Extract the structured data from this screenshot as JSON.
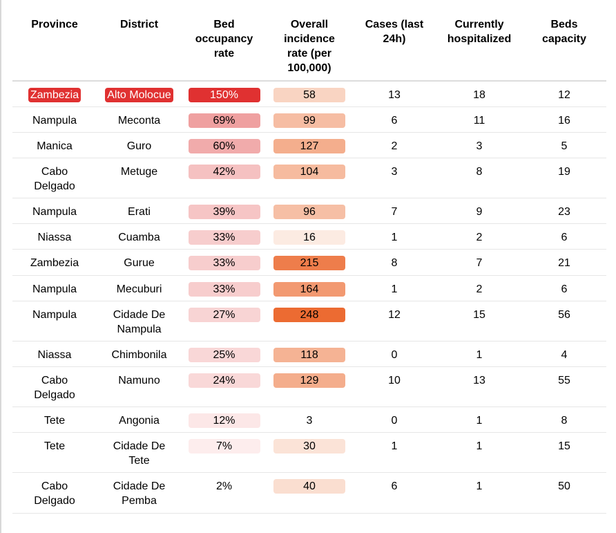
{
  "chart_data": {
    "type": "table",
    "columns": [
      "Province",
      "District",
      "Bed occupancy rate",
      "Overall incidence rate (per 100,000)",
      "Cases (last 24h)",
      "Currently hospitalized",
      "Beds capacity"
    ],
    "rows": [
      {
        "province": "Zambezia",
        "district": "Alto Molocue",
        "occupancy": "150%",
        "occupancy_value": 150,
        "incidence": "58",
        "incidence_value": 58,
        "cases": "13",
        "hospitalized": "18",
        "beds": "12"
      },
      {
        "province": "Nampula",
        "district": "Meconta",
        "occupancy": "69%",
        "occupancy_value": 69,
        "incidence": "99",
        "incidence_value": 99,
        "cases": "6",
        "hospitalized": "11",
        "beds": "16"
      },
      {
        "province": "Manica",
        "district": "Guro",
        "occupancy": "60%",
        "occupancy_value": 60,
        "incidence": "127",
        "incidence_value": 127,
        "cases": "2",
        "hospitalized": "3",
        "beds": "5"
      },
      {
        "province": "Cabo Delgado",
        "district": "Metuge",
        "occupancy": "42%",
        "occupancy_value": 42,
        "incidence": "104",
        "incidence_value": 104,
        "cases": "3",
        "hospitalized": "8",
        "beds": "19"
      },
      {
        "province": "Nampula",
        "district": "Erati",
        "occupancy": "39%",
        "occupancy_value": 39,
        "incidence": "96",
        "incidence_value": 96,
        "cases": "7",
        "hospitalized": "9",
        "beds": "23"
      },
      {
        "province": "Niassa",
        "district": "Cuamba",
        "occupancy": "33%",
        "occupancy_value": 33,
        "incidence": "16",
        "incidence_value": 16,
        "cases": "1",
        "hospitalized": "2",
        "beds": "6"
      },
      {
        "province": "Zambezia",
        "district": "Gurue",
        "occupancy": "33%",
        "occupancy_value": 33,
        "incidence": "215",
        "incidence_value": 215,
        "cases": "8",
        "hospitalized": "7",
        "beds": "21"
      },
      {
        "province": "Nampula",
        "district": "Mecuburi",
        "occupancy": "33%",
        "occupancy_value": 33,
        "incidence": "164",
        "incidence_value": 164,
        "cases": "1",
        "hospitalized": "2",
        "beds": "6"
      },
      {
        "province": "Nampula",
        "district": "Cidade De Nampula",
        "occupancy": "27%",
        "occupancy_value": 27,
        "incidence": "248",
        "incidence_value": 248,
        "cases": "12",
        "hospitalized": "15",
        "beds": "56"
      },
      {
        "province": "Niassa",
        "district": "Chimbonila",
        "occupancy": "25%",
        "occupancy_value": 25,
        "incidence": "118",
        "incidence_value": 118,
        "cases": "0",
        "hospitalized": "1",
        "beds": "4"
      },
      {
        "province": "Cabo Delgado",
        "district": "Namuno",
        "occupancy": "24%",
        "occupancy_value": 24,
        "incidence": "129",
        "incidence_value": 129,
        "cases": "10",
        "hospitalized": "13",
        "beds": "55"
      },
      {
        "province": "Tete",
        "district": "Angonia",
        "occupancy": "12%",
        "occupancy_value": 12,
        "incidence": "3",
        "incidence_value": 3,
        "cases": "0",
        "hospitalized": "1",
        "beds": "8"
      },
      {
        "province": "Tete",
        "district": "Cidade De Tete",
        "occupancy": "7%",
        "occupancy_value": 7,
        "incidence": "30",
        "incidence_value": 30,
        "cases": "1",
        "hospitalized": "1",
        "beds": "15"
      },
      {
        "province": "Cabo Delgado",
        "district": "Cidade De Pemba",
        "occupancy": "2%",
        "occupancy_value": 2,
        "incidence": "40",
        "incidence_value": 40,
        "cases": "6",
        "hospitalized": "1",
        "beds": "50"
      }
    ],
    "highlight_row": 0,
    "colors": {
      "highlight": "#e03131",
      "occupancy_high": "#e03131",
      "occupancy_mid": "#ee9898",
      "occupancy_low": "#fdf0f0",
      "incidence_low": "#fdf4ee",
      "incidence_high": "#ec6a30",
      "header_rule": "#dcdcdc",
      "row_rule": "#e6e6e6"
    }
  }
}
